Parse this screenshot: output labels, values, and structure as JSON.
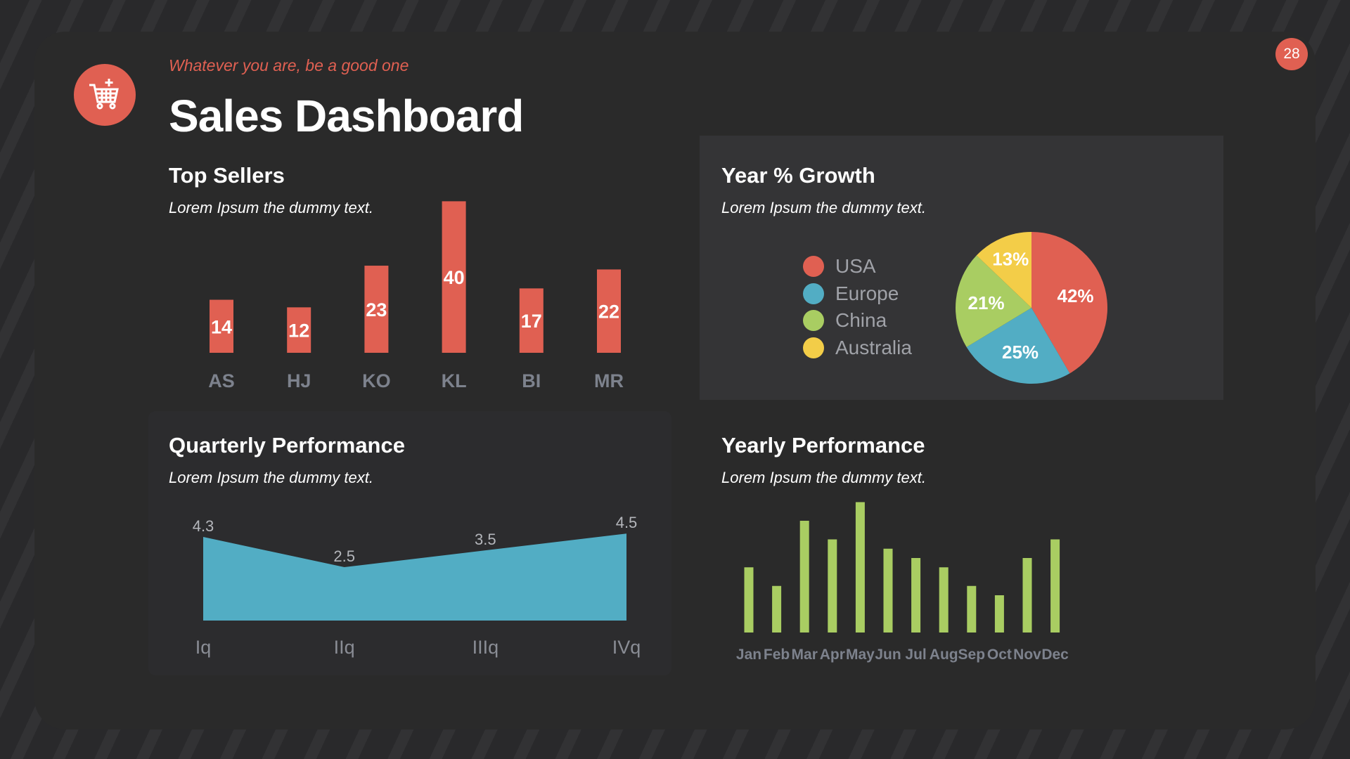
{
  "header": {
    "tagline": "Whatever you are, be a good one",
    "title": "Sales Dashboard",
    "page_number": "28",
    "logo_icon": "shopping-cart-icon"
  },
  "colors": {
    "accent": "#e06052",
    "blue": "#52adc4",
    "green": "#a9cd62",
    "yellow": "#f3cd48"
  },
  "chart_data": [
    {
      "type": "bar",
      "title": "Top Sellers",
      "subtitle": "Lorem Ipsum the dummy text.",
      "categories": [
        "AS",
        "HJ",
        "KO",
        "KL",
        "BI",
        "MR"
      ],
      "values": [
        14,
        12,
        23,
        40,
        17,
        22
      ],
      "data_labels": [
        "14",
        "12",
        "23",
        "40",
        "17",
        "22"
      ]
    },
    {
      "type": "pie",
      "title": "Year % Growth",
      "subtitle": "Lorem Ipsum the dummy text.",
      "slices": [
        {
          "name": "USA",
          "value": 42,
          "label": "42%",
          "color": "#e06052"
        },
        {
          "name": "Europe",
          "value": 25,
          "label": "25%",
          "color": "#52adc4"
        },
        {
          "name": "China",
          "value": 21,
          "label": "21%",
          "color": "#a9cd62"
        },
        {
          "name": "Australia",
          "value": 13,
          "label": "13%",
          "color": "#f3cd48"
        }
      ],
      "legend": "left"
    },
    {
      "type": "area",
      "title": "Quarterly Performance",
      "subtitle": "Lorem Ipsum the dummy text.",
      "categories": [
        "Iq",
        "IIq",
        "IIIq",
        "IVq"
      ],
      "values": [
        4.3,
        2.5,
        3.5,
        4.5
      ],
      "data_labels": [
        "4.3",
        "2.5",
        "3.5",
        "4.5"
      ]
    },
    {
      "type": "bar",
      "title": "Yearly Performance",
      "subtitle": "Lorem Ipsum the dummy text.",
      "categories": [
        "Jan",
        "Feb",
        "Mar",
        "Apr",
        "May",
        "Jun",
        "Jul",
        "Aug",
        "Sep",
        "Oct",
        "Nov",
        "Dec"
      ],
      "values": [
        7,
        5,
        12,
        10,
        14,
        9,
        8,
        7,
        5,
        4,
        8,
        10
      ]
    }
  ]
}
